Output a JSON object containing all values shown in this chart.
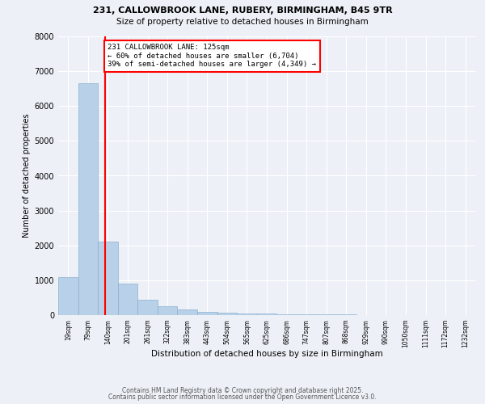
{
  "title1": "231, CALLOWBROOK LANE, RUBERY, BIRMINGHAM, B45 9TR",
  "title2": "Size of property relative to detached houses in Birmingham",
  "xlabel": "Distribution of detached houses by size in Birmingham",
  "ylabel": "Number of detached properties",
  "bar_color": "#b8d0e8",
  "bar_edge_color": "#8cb0d0",
  "vline_color": "red",
  "annotation_text": "231 CALLOWBROOK LANE: 125sqm\n← 60% of detached houses are smaller (6,704)\n39% of semi-detached houses are larger (4,349) →",
  "annotation_text_color": "black",
  "footer1": "Contains HM Land Registry data © Crown copyright and database right 2025.",
  "footer2": "Contains public sector information licensed under the Open Government Licence v3.0.",
  "bin_labels": [
    "19sqm",
    "79sqm",
    "140sqm",
    "201sqm",
    "261sqm",
    "322sqm",
    "383sqm",
    "443sqm",
    "504sqm",
    "565sqm",
    "625sqm",
    "686sqm",
    "747sqm",
    "807sqm",
    "868sqm",
    "929sqm",
    "990sqm",
    "1050sqm",
    "1111sqm",
    "1172sqm",
    "1232sqm"
  ],
  "bar_heights": [
    1100,
    6650,
    2100,
    900,
    430,
    250,
    160,
    100,
    70,
    50,
    40,
    30,
    22,
    18,
    14,
    11,
    9,
    7,
    5,
    4,
    0
  ],
  "vline_idx": 1.85,
  "ylim": [
    0,
    8000
  ],
  "yticks": [
    0,
    1000,
    2000,
    3000,
    4000,
    5000,
    6000,
    7000,
    8000
  ],
  "background_color": "#edf1f7",
  "grid_color": "white"
}
